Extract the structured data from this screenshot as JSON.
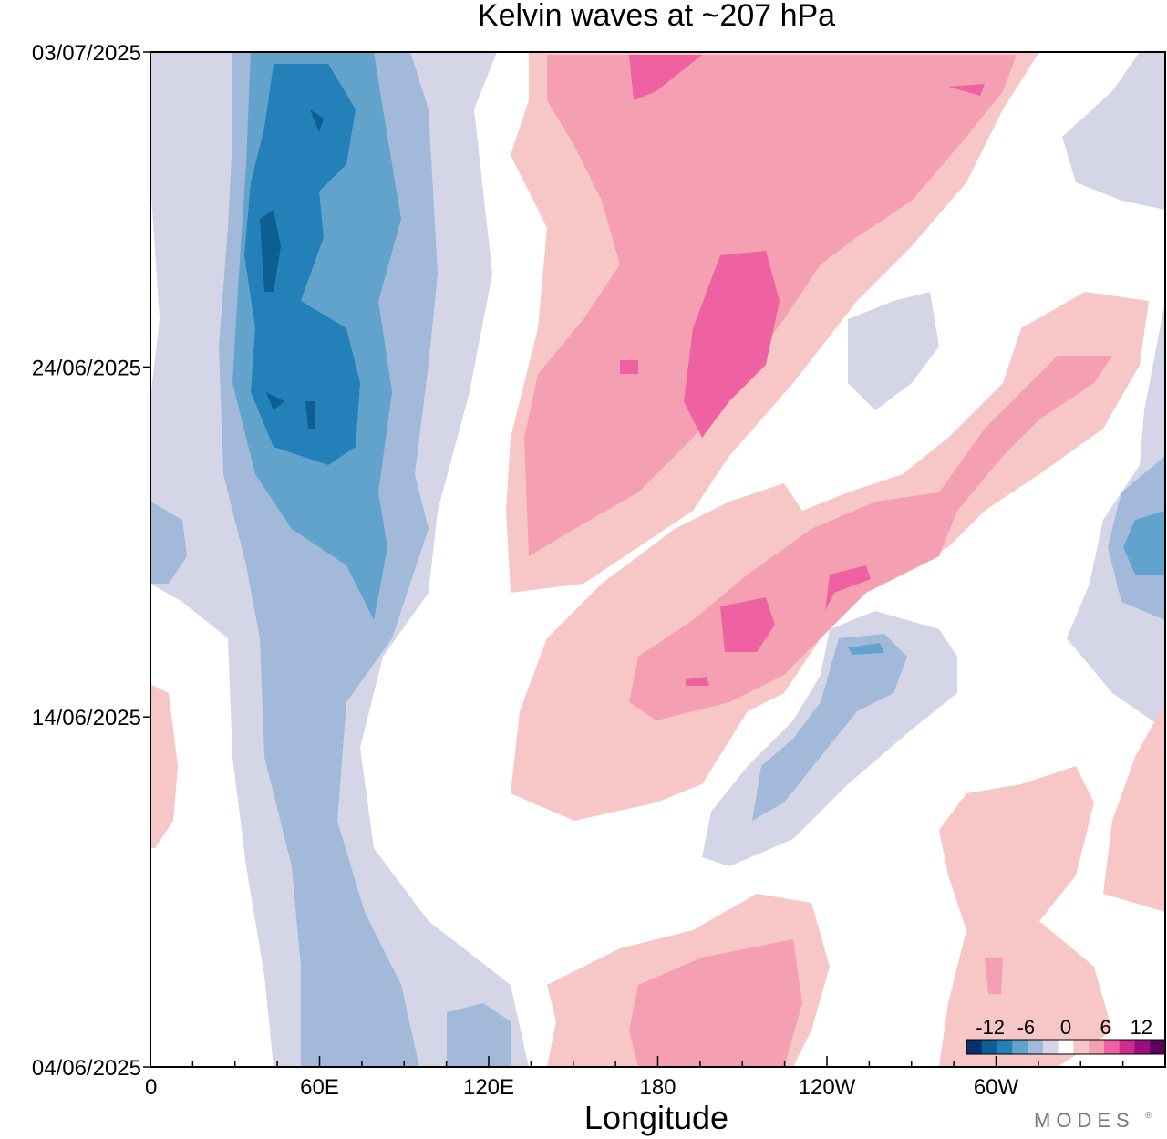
{
  "chart_data": {
    "type": "heatmap",
    "title": "Kelvin waves at ~207 hPa",
    "xlabel": "Longitude",
    "ylabel": "",
    "x_ticks": [
      "0",
      "60E",
      "120E",
      "180",
      "120W",
      "60W"
    ],
    "y_ticks": [
      "04/06/2025",
      "14/06/2025",
      "24/06/2025",
      "03/07/2025"
    ],
    "x_range_deg": [
      0,
      360
    ],
    "y_range_days": [
      0,
      29
    ],
    "colorbar": {
      "tick_labels": [
        "-12",
        "-6",
        "0",
        "6",
        "12"
      ],
      "levels": [
        -12,
        -10,
        -8,
        -6,
        -4,
        -2,
        0,
        2,
        4,
        6,
        8,
        10,
        12
      ],
      "colors": [
        "#08306b",
        "#0b5f93",
        "#2480b8",
        "#62a3cc",
        "#a2b9d9",
        "#d4d6e7",
        "#ffffff",
        "#f7c6c6",
        "#f59fb2",
        "#ee62a2",
        "#d02c8e",
        "#9a0e82",
        "#5a005d"
      ]
    },
    "features": [
      {
        "name": "negative-band-west",
        "sign": "negative",
        "lon_deg": [
          35,
          80
        ],
        "days": [
          0,
          29
        ],
        "peak": -12
      },
      {
        "name": "positive-band-main",
        "sign": "positive",
        "lon_deg": [
          130,
          330
        ],
        "days": [
          13,
          29
        ],
        "peak": 8
      },
      {
        "name": "positive-band-lower",
        "sign": "positive",
        "lon_deg": [
          140,
          280
        ],
        "days": [
          8,
          22
        ],
        "peak": 7
      },
      {
        "name": "negative-band-east",
        "sign": "negative",
        "lon_deg": [
          210,
          300
        ],
        "days": [
          6,
          13
        ],
        "peak": -6
      },
      {
        "name": "positive-band-southeast",
        "sign": "positive",
        "lon_deg": [
          140,
          360
        ],
        "days": [
          0,
          8
        ],
        "peak": 4
      },
      {
        "name": "negative-band-far-east",
        "sign": "negative",
        "lon_deg": [
          320,
          360
        ],
        "days": [
          10,
          29
        ],
        "peak": -8
      }
    ]
  },
  "watermark": {
    "text": "MODES",
    "mark": "®"
  }
}
